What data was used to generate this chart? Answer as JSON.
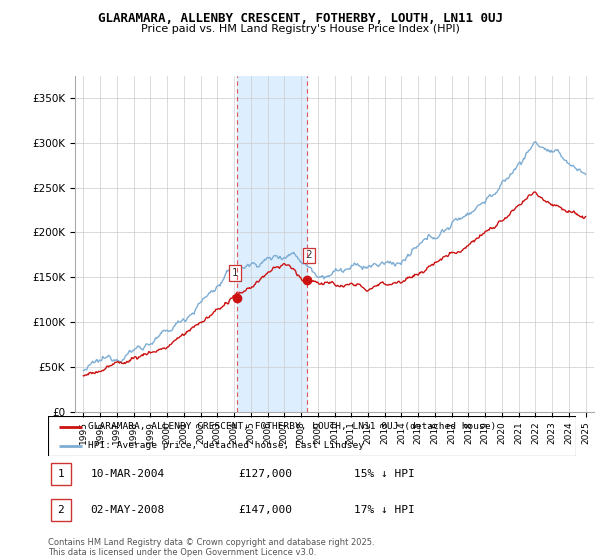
{
  "title": "GLARAMARA, ALLENBY CRESCENT, FOTHERBY, LOUTH, LN11 0UJ",
  "subtitle": "Price paid vs. HM Land Registry's House Price Index (HPI)",
  "ylabel_ticks": [
    "£0",
    "£50K",
    "£100K",
    "£150K",
    "£200K",
    "£250K",
    "£300K",
    "£350K"
  ],
  "ytick_values": [
    0,
    50000,
    100000,
    150000,
    200000,
    250000,
    300000,
    350000
  ],
  "ylim": [
    0,
    375000
  ],
  "xlim_start": 1994.5,
  "xlim_end": 2025.5,
  "hpi_color": "#7eadd4",
  "price_color": "#cc1111",
  "shaded_color": "#ddeeff",
  "purchase1_date": 2004.19,
  "purchase1_price": 127000,
  "purchase2_date": 2008.37,
  "purchase2_price": 147000,
  "legend_line1": "GLARAMARA, ALLENBY CRESCENT, FOTHERBY, LOUTH, LN11 0UJ (detached house)",
  "legend_line2": "HPI: Average price, detached house, East Lindsey",
  "annotation1_date": "10-MAR-2004",
  "annotation1_price": "£127,000",
  "annotation1_pct": "15% ↓ HPI",
  "annotation2_date": "02-MAY-2008",
  "annotation2_price": "£147,000",
  "annotation2_pct": "17% ↓ HPI",
  "footer": "Contains HM Land Registry data © Crown copyright and database right 2025.\nThis data is licensed under the Open Government Licence v3.0.",
  "xtick_years": [
    1995,
    1996,
    1997,
    1998,
    1999,
    2000,
    2001,
    2002,
    2003,
    2004,
    2005,
    2006,
    2007,
    2008,
    2009,
    2010,
    2011,
    2012,
    2013,
    2014,
    2015,
    2016,
    2017,
    2018,
    2019,
    2020,
    2021,
    2022,
    2023,
    2024,
    2025
  ]
}
